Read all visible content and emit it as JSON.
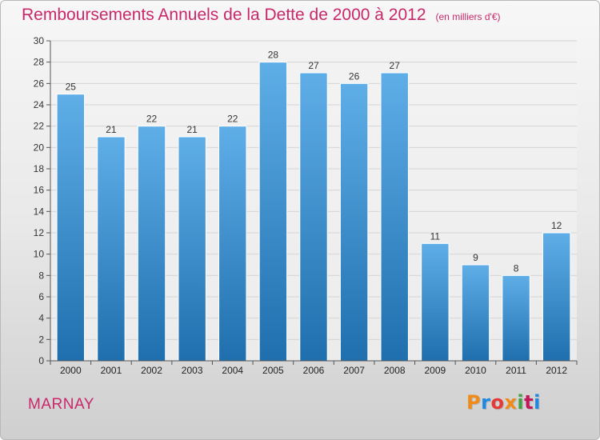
{
  "header": {
    "title": "Remboursements Annuels de la Dette de 2000 à 2012",
    "unit": "(en milliers d'€)"
  },
  "footer": {
    "commune": "MARNAY",
    "logo": "Proxiti",
    "logo_colors": [
      "#f08a18",
      "#1e88e5",
      "#e53935",
      "#f08a18",
      "#43a047",
      "#c2185b",
      "#1e88e5"
    ]
  },
  "colors": {
    "bar_top": "#5faee8",
    "bar_bottom": "#1f6fae",
    "title": "#c8286a",
    "grid": "#d4d4d4"
  },
  "chart_data": {
    "type": "bar",
    "title": "Remboursements Annuels de la Dette de 2000 à 2012",
    "subtitle": "(en milliers d'€)",
    "xlabel": "",
    "ylabel": "",
    "categories": [
      "2000",
      "2001",
      "2002",
      "2003",
      "2004",
      "2005",
      "2006",
      "2007",
      "2008",
      "2009",
      "2010",
      "2011",
      "2012"
    ],
    "values": [
      25,
      21,
      22,
      21,
      22,
      28,
      27,
      26,
      27,
      11,
      9,
      8,
      12
    ],
    "ylim": [
      0,
      30
    ],
    "yticks": [
      0,
      2,
      4,
      6,
      8,
      10,
      12,
      14,
      16,
      18,
      20,
      22,
      24,
      26,
      28,
      30
    ],
    "grid": true,
    "legend": "none"
  }
}
